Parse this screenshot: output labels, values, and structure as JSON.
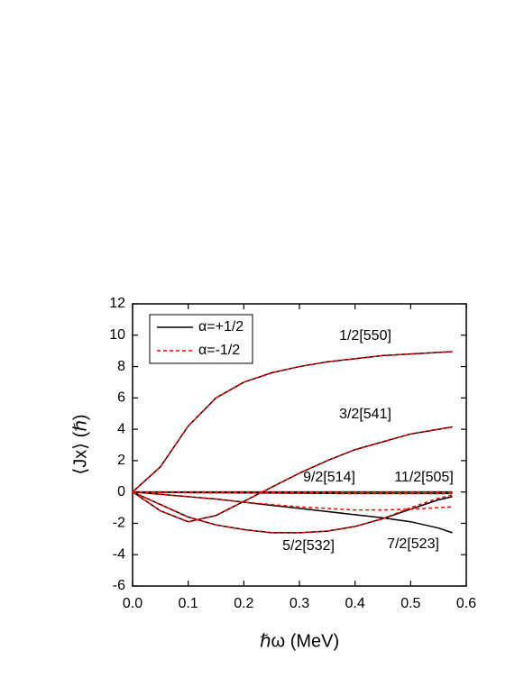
{
  "chart_data": {
    "type": "line",
    "x_label": "ℏω (MeV)",
    "y_label": "⟨Jx⟩ (ℏ)",
    "x": [
      0,
      0.05,
      0.1,
      0.15,
      0.2,
      0.25,
      0.3,
      0.35,
      0.4,
      0.45,
      0.5,
      0.55,
      0.575
    ],
    "xlim": [
      0,
      0.6
    ],
    "xticks": [
      {
        "value": 0,
        "label": "0.0"
      },
      0.1,
      0.2,
      0.3,
      0.4,
      0.5,
      0.6
    ],
    "ylim": [
      -6,
      12
    ],
    "yticks": [
      -6,
      -4,
      -2,
      0,
      2,
      4,
      6,
      8,
      10,
      12
    ],
    "legend": "upper left",
    "curve_labels": [
      "1/2[550]",
      "3/2[541]",
      "9/2[514]",
      "11/2[505]",
      "5/2[532]",
      "7/2[523]"
    ],
    "series": [
      {
        "name": "α=+1/2",
        "color": "#000000",
        "dashed": false,
        "curves": [
          {
            "values": [
              0,
              1.6,
              4.2,
              6.0,
              7.0,
              7.6,
              8.0,
              8.3,
              8.5,
              8.7,
              8.8,
              8.9,
              8.95
            ]
          },
          {
            "values": [
              0,
              -1.2,
              -1.9,
              -1.5,
              -0.6,
              0.3,
              1.2,
              2.0,
              2.7,
              3.2,
              3.7,
              4.0,
              4.15
            ]
          },
          {
            "values": [
              0,
              -0.02,
              -0.04,
              -0.05,
              -0.06,
              -0.07,
              -0.08,
              -0.09,
              -0.1,
              -0.1,
              -0.1,
              -0.1,
              -0.1
            ]
          },
          {
            "values": [
              0,
              0,
              0,
              0,
              0,
              0,
              0,
              0,
              0,
              0,
              0,
              0,
              0
            ]
          },
          {
            "values": [
              0,
              -0.8,
              -1.6,
              -2.1,
              -2.4,
              -2.6,
              -2.6,
              -2.5,
              -2.2,
              -1.7,
              -1.1,
              -0.5,
              -0.3
            ]
          },
          {
            "values": [
              0,
              -0.15,
              -0.3,
              -0.45,
              -0.65,
              -0.85,
              -1.05,
              -1.25,
              -1.45,
              -1.65,
              -1.9,
              -2.3,
              -2.6
            ]
          }
        ]
      },
      {
        "name": "α=-1/2",
        "color": "#ff0000",
        "dashed": true,
        "curves": [
          {
            "values": [
              0,
              1.6,
              4.2,
              6.0,
              7.0,
              7.6,
              8.0,
              8.3,
              8.5,
              8.7,
              8.8,
              8.9,
              8.95
            ]
          },
          {
            "values": [
              0,
              -1.2,
              -1.9,
              -1.5,
              -0.6,
              0.3,
              1.2,
              2.0,
              2.7,
              3.2,
              3.7,
              4.0,
              4.15
            ]
          },
          {
            "values": [
              0,
              -0.02,
              -0.04,
              -0.05,
              -0.06,
              -0.07,
              -0.08,
              -0.09,
              -0.1,
              -0.1,
              -0.1,
              -0.1,
              -0.1
            ]
          },
          {
            "values": [
              0,
              0,
              0,
              0,
              0,
              0,
              0,
              0,
              0,
              0,
              0,
              0,
              0
            ]
          },
          {
            "values": [
              0,
              -0.8,
              -1.6,
              -2.1,
              -2.4,
              -2.6,
              -2.6,
              -2.5,
              -2.2,
              -1.7,
              -1.0,
              -0.4,
              -0.2
            ]
          },
          {
            "values": [
              0,
              -0.15,
              -0.3,
              -0.45,
              -0.65,
              -0.8,
              -0.95,
              -1.05,
              -1.15,
              -1.15,
              -1.1,
              -1.0,
              -0.95
            ]
          }
        ]
      }
    ]
  }
}
